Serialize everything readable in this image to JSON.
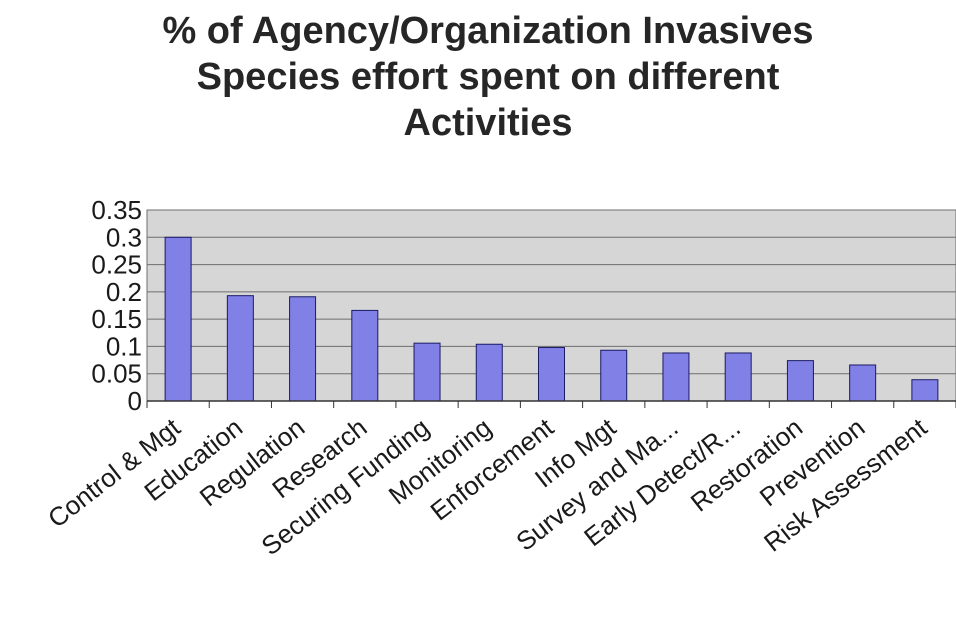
{
  "chart_data": {
    "type": "bar",
    "title_lines": [
      "% of Agency/Organization Invasives",
      "Species effort spent on different",
      "Activities"
    ],
    "categories": [
      "Control & Mgt",
      "Education",
      "Regulation",
      "Research",
      "Securing Funding",
      "Monitoring",
      "Enforcement",
      "Info Mgt",
      "Survey and Ma...",
      "Early Detect/R...",
      "Restoration",
      "Prevention",
      "Risk Assessment"
    ],
    "values": [
      0.3,
      0.193,
      0.191,
      0.166,
      0.106,
      0.104,
      0.098,
      0.093,
      0.088,
      0.088,
      0.074,
      0.066,
      0.039
    ],
    "yticks": [
      "0",
      "0.05",
      "0.1",
      "0.15",
      "0.2",
      "0.25",
      "0.3",
      "0.35"
    ],
    "ylim": [
      0,
      0.35
    ],
    "grid": true,
    "colors": {
      "bar_fill": "#8080e6",
      "bar_stroke": "#1a1a66",
      "plot_bg": "#d6d6d6",
      "grid": "#6e6e6e"
    }
  }
}
